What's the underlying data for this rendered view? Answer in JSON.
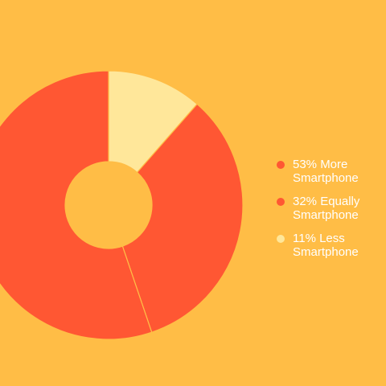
{
  "background": "#FFBD46",
  "chart_data": {
    "type": "pie",
    "donut": true,
    "title": "",
    "slices": [
      {
        "label": "53% More Smartphone",
        "value": 53,
        "color": "#FF5733"
      },
      {
        "label": "32% Equally Smartphone",
        "value": 32,
        "color": "#FF5733"
      },
      {
        "label": "11% Less Smartphone",
        "value": 11,
        "color": "#FFE79A"
      }
    ],
    "legend": {
      "position": "right",
      "items": [
        "53% More Smartphone",
        "32% Equally\nSmartphone",
        "11% Less Smartphone"
      ]
    }
  }
}
